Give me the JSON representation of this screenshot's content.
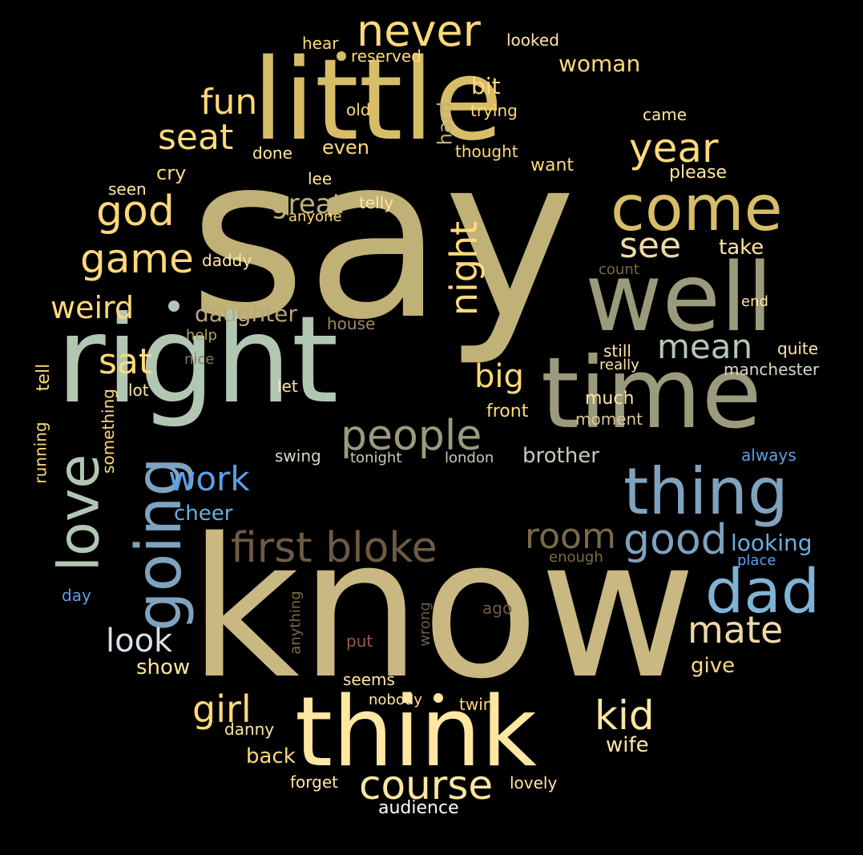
{
  "palette": {
    "background": "#000000",
    "gold": "#D7BD68",
    "khaki": "#C0B177",
    "sage": "#B2C7B3",
    "olive_grey": "#9B9A7C",
    "steel_blue": "#7FA3BE",
    "sky_blue": "#6DAEE0",
    "bright_blue": "#5C9FE6",
    "cream": "#FFE6A2",
    "yellow": "#FFD97A",
    "tan": "#EFD9A8",
    "brown": "#6F5A45",
    "rust": "#9C5A48",
    "dark_olive": "#7A6A48"
  },
  "words": [
    {
      "text": "say",
      "color": "#C0B177",
      "orientation": "horizontal"
    },
    {
      "text": "know",
      "color": "#C9B882",
      "orientation": "horizontal"
    },
    {
      "text": "right",
      "color": "#B2C7B3",
      "orientation": "horizontal"
    },
    {
      "text": "little",
      "color": "#D7BD68",
      "orientation": "horizontal"
    },
    {
      "text": "time",
      "color": "#9B9A7C",
      "orientation": "horizontal"
    },
    {
      "text": "well",
      "color": "#9B9A7C",
      "orientation": "horizontal"
    },
    {
      "text": "think",
      "color": "#FFE6A2",
      "orientation": "horizontal"
    },
    {
      "text": "thing",
      "color": "#7FA3BE",
      "orientation": "horizontal"
    },
    {
      "text": "come",
      "color": "#D7BD68",
      "orientation": "horizontal"
    },
    {
      "text": "going",
      "color": "#7FA3BE",
      "orientation": "vertical"
    },
    {
      "text": "love",
      "color": "#B2C7B3",
      "orientation": "vertical"
    },
    {
      "text": "dad",
      "color": "#7FB2D6",
      "orientation": "horizontal"
    },
    {
      "text": "first bloke",
      "color": "#6F5A45",
      "orientation": "horizontal"
    },
    {
      "text": "people",
      "color": "#9B9A7C",
      "orientation": "horizontal"
    },
    {
      "text": "never",
      "color": "#FFD97A",
      "orientation": "horizontal"
    },
    {
      "text": "year",
      "color": "#FFD97A",
      "orientation": "horizontal"
    },
    {
      "text": "good",
      "color": "#7FA3BE",
      "orientation": "horizontal"
    },
    {
      "text": "room",
      "color": "#7A6A48",
      "orientation": "horizontal"
    },
    {
      "text": "night",
      "color": "#FFD97A",
      "orientation": "vertical"
    },
    {
      "text": "game",
      "color": "#FFD97A",
      "orientation": "horizontal"
    },
    {
      "text": "god",
      "color": "#FFD97A",
      "orientation": "horizontal"
    },
    {
      "text": "course",
      "color": "#FFE6A2",
      "orientation": "horizontal"
    },
    {
      "text": "kid",
      "color": "#FFE6A2",
      "orientation": "horizontal"
    },
    {
      "text": "mate",
      "color": "#EFD9A8",
      "orientation": "horizontal"
    },
    {
      "text": "see",
      "color": "#EFD9A8",
      "orientation": "horizontal"
    },
    {
      "text": "mean",
      "color": "#B2C7B3",
      "orientation": "horizontal"
    },
    {
      "text": "seat",
      "color": "#FFD97A",
      "orientation": "horizontal"
    },
    {
      "text": "fun",
      "color": "#FFD97A",
      "orientation": "horizontal"
    },
    {
      "text": "weird",
      "color": "#FFD97A",
      "orientation": "horizontal"
    },
    {
      "text": "look",
      "color": "#D9E0E6",
      "orientation": "horizontal"
    },
    {
      "text": "work",
      "color": "#5C9FE6",
      "orientation": "horizontal"
    },
    {
      "text": "girl",
      "color": "#FFD97A",
      "orientation": "horizontal"
    },
    {
      "text": "sat",
      "color": "#FFD97A",
      "orientation": "horizontal"
    },
    {
      "text": "big",
      "color": "#FFD97A",
      "orientation": "horizontal"
    },
    {
      "text": "great",
      "color": "#C0B177",
      "orientation": "horizontal"
    },
    {
      "text": "daughter",
      "color": "#B8A77A",
      "orientation": "horizontal"
    },
    {
      "text": "looking",
      "color": "#6DAEE0",
      "orientation": "horizontal"
    },
    {
      "text": "brother",
      "color": "#C9C9B8",
      "orientation": "horizontal"
    },
    {
      "text": "woman",
      "color": "#FFD97A",
      "orientation": "horizontal"
    },
    {
      "text": "bit",
      "color": "#FFD97A",
      "orientation": "horizontal"
    },
    {
      "text": "hard",
      "color": "#C0B177",
      "orientation": "vertical"
    },
    {
      "text": "show",
      "color": "#FFE6A2",
      "orientation": "horizontal"
    },
    {
      "text": "give",
      "color": "#FFD97A",
      "orientation": "horizontal"
    },
    {
      "text": "cheer",
      "color": "#6DAEE0",
      "orientation": "horizontal"
    },
    {
      "text": "back",
      "color": "#FFD97A",
      "orientation": "horizontal"
    },
    {
      "text": "wife",
      "color": "#FFE6A2",
      "orientation": "horizontal"
    },
    {
      "text": "take",
      "color": "#FFE6A2",
      "orientation": "horizontal"
    },
    {
      "text": "even",
      "color": "#FFD97A",
      "orientation": "horizontal"
    },
    {
      "text": "cry",
      "color": "#FFD97A",
      "orientation": "horizontal"
    },
    {
      "text": "want",
      "color": "#FFD97A",
      "orientation": "horizontal"
    },
    {
      "text": "please",
      "color": "#FFE6A2",
      "orientation": "horizontal"
    },
    {
      "text": "came",
      "color": "#FFE6A2",
      "orientation": "horizontal"
    },
    {
      "text": "looked",
      "color": "#FFE6A2",
      "orientation": "horizontal"
    },
    {
      "text": "reserved",
      "color": "#FFD97A",
      "orientation": "horizontal"
    },
    {
      "text": "hear",
      "color": "#FFD97A",
      "orientation": "horizontal"
    },
    {
      "text": "old",
      "color": "#FFD97A",
      "orientation": "horizontal"
    },
    {
      "text": "trying",
      "color": "#FFD97A",
      "orientation": "horizontal"
    },
    {
      "text": "thought",
      "color": "#FFD97A",
      "orientation": "horizontal"
    },
    {
      "text": "done",
      "color": "#FFE6A2",
      "orientation": "horizontal"
    },
    {
      "text": "lee",
      "color": "#FFE6A2",
      "orientation": "horizontal"
    },
    {
      "text": "seen",
      "color": "#FFE6A2",
      "orientation": "horizontal"
    },
    {
      "text": "telly",
      "color": "#FFE6A2",
      "orientation": "horizontal"
    },
    {
      "text": "anyone",
      "color": "#FFD97A",
      "orientation": "horizontal"
    },
    {
      "text": "daddy",
      "color": "#FFE6A2",
      "orientation": "horizontal"
    },
    {
      "text": "count",
      "color": "#7A6A48",
      "orientation": "horizontal"
    },
    {
      "text": "end",
      "color": "#FFE6A2",
      "orientation": "horizontal"
    },
    {
      "text": "house",
      "color": "#9C8A64",
      "orientation": "horizontal"
    },
    {
      "text": "help",
      "color": "#B8A060",
      "orientation": "horizontal"
    },
    {
      "text": "nice",
      "color": "#8A7A58",
      "orientation": "horizontal"
    },
    {
      "text": "still",
      "color": "#FFE6A2",
      "orientation": "horizontal"
    },
    {
      "text": "really",
      "color": "#FFE6A2",
      "orientation": "horizontal"
    },
    {
      "text": "quite",
      "color": "#FFE6A2",
      "orientation": "horizontal"
    },
    {
      "text": "manchester",
      "color": "#D9D9C8",
      "orientation": "horizontal"
    },
    {
      "text": "tell",
      "color": "#FFD97A",
      "orientation": "vertical"
    },
    {
      "text": "running",
      "color": "#FFD97A",
      "orientation": "vertical"
    },
    {
      "text": "something",
      "color": "#FFD97A",
      "orientation": "vertical"
    },
    {
      "text": "lot",
      "color": "#FFE6A2",
      "orientation": "horizontal"
    },
    {
      "text": "let",
      "color": "#FFE6A2",
      "orientation": "horizontal"
    },
    {
      "text": "much",
      "color": "#FFE6A2",
      "orientation": "horizontal"
    },
    {
      "text": "front",
      "color": "#FFD97A",
      "orientation": "horizontal"
    },
    {
      "text": "moment",
      "color": "#D8C49A",
      "orientation": "horizontal"
    },
    {
      "text": "swing",
      "color": "#D9D9C8",
      "orientation": "horizontal"
    },
    {
      "text": "tonight",
      "color": "#C9C9B8",
      "orientation": "horizontal"
    },
    {
      "text": "london",
      "color": "#C9C9B8",
      "orientation": "horizontal"
    },
    {
      "text": "always",
      "color": "#5C9FE6",
      "orientation": "horizontal"
    },
    {
      "text": "enough",
      "color": "#7A6A48",
      "orientation": "horizontal"
    },
    {
      "text": "place",
      "color": "#5C9FE6",
      "orientation": "horizontal"
    },
    {
      "text": "day",
      "color": "#5C9FE6",
      "orientation": "horizontal"
    },
    {
      "text": "anything",
      "color": "#7A6A48",
      "orientation": "vertical"
    },
    {
      "text": "wrong",
      "color": "#6F5A45",
      "orientation": "vertical"
    },
    {
      "text": "ago",
      "color": "#6F5A45",
      "orientation": "horizontal"
    },
    {
      "text": "put",
      "color": "#9C5A48",
      "orientation": "horizontal"
    },
    {
      "text": "seems",
      "color": "#FFE6A2",
      "orientation": "horizontal"
    },
    {
      "text": "nobody",
      "color": "#FFE6A2",
      "orientation": "horizontal"
    },
    {
      "text": "twin",
      "color": "#FFD97A",
      "orientation": "horizontal"
    },
    {
      "text": "danny",
      "color": "#FFE6A2",
      "orientation": "horizontal"
    },
    {
      "text": "forget",
      "color": "#FFE6A2",
      "orientation": "horizontal"
    },
    {
      "text": "lovely",
      "color": "#FFE6A2",
      "orientation": "horizontal"
    },
    {
      "text": "audience",
      "color": "#FFFFFF",
      "orientation": "horizontal"
    }
  ]
}
